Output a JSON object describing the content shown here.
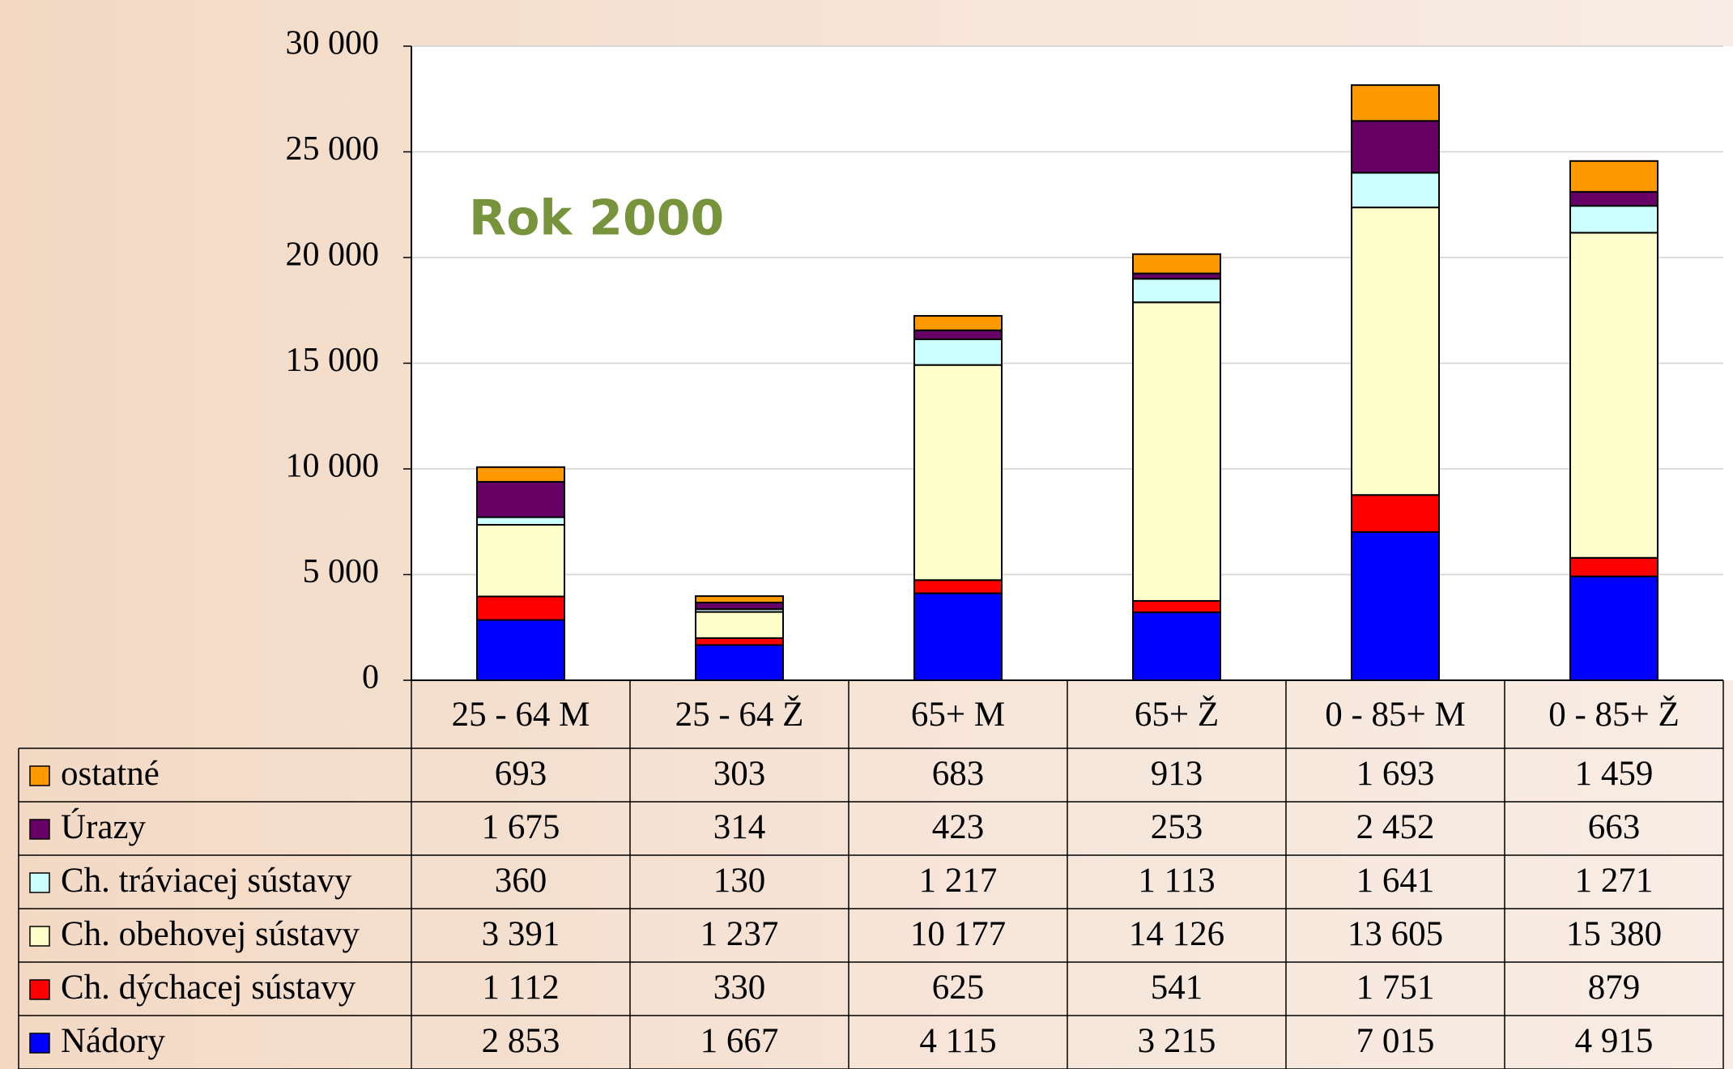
{
  "chart_data": {
    "type": "stacked_bar",
    "annotation": "Rok 2000",
    "categories": [
      "25 - 64 M",
      "25 - 64 Ž",
      "65+ M",
      "65+ Ž",
      "0 - 85+ M",
      "0 - 85+ Ž"
    ],
    "series": [
      {
        "name": "Nádory",
        "color": "#0000ff",
        "values": [
          2853,
          1667,
          4115,
          3215,
          7015,
          4915
        ],
        "value_labels": [
          "2 853",
          "1 667",
          "4 115",
          "3 215",
          "7 015",
          "4 915"
        ]
      },
      {
        "name": "Ch. dýchacej sústavy",
        "color": "#ff0000",
        "values": [
          1112,
          330,
          625,
          541,
          1751,
          879
        ],
        "value_labels": [
          "1 112",
          "330",
          "625",
          "541",
          "1 751",
          "879"
        ]
      },
      {
        "name": "Ch. obehovej sústavy",
        "color": "#ffffcc",
        "values": [
          3391,
          1237,
          10177,
          14126,
          13605,
          15380
        ],
        "value_labels": [
          "3 391",
          "1 237",
          "10 177",
          "14 126",
          "13 605",
          "15 380"
        ]
      },
      {
        "name": "Ch. tráviacej sústavy",
        "color": "#ccffff",
        "values": [
          360,
          130,
          1217,
          1113,
          1641,
          1271
        ],
        "value_labels": [
          "360",
          "130",
          "1 217",
          "1 113",
          "1 641",
          "1 271"
        ]
      },
      {
        "name": "Úrazy",
        "color": "#660066",
        "values": [
          1675,
          314,
          423,
          253,
          2452,
          663
        ],
        "value_labels": [
          "1 675",
          "314",
          "423",
          "253",
          "2 452",
          "663"
        ]
      },
      {
        "name": "ostatné",
        "color": "#ff9900",
        "values": [
          693,
          303,
          683,
          913,
          1693,
          1459
        ],
        "value_labels": [
          "693",
          "303",
          "683",
          "913",
          "1 693",
          "1 459"
        ]
      }
    ],
    "ylim": [
      0,
      30000
    ],
    "yticks": [
      0,
      {
        "value": 5000,
        "label": "5 000"
      },
      {
        "value": 10000,
        "label": "10 000"
      },
      {
        "value": 15000,
        "label": "15 000"
      },
      {
        "value": 20000,
        "label": "20 000"
      },
      {
        "value": 25000,
        "label": "25 000"
      },
      {
        "value": 30000,
        "label": "30 000"
      }
    ],
    "grid": true
  }
}
